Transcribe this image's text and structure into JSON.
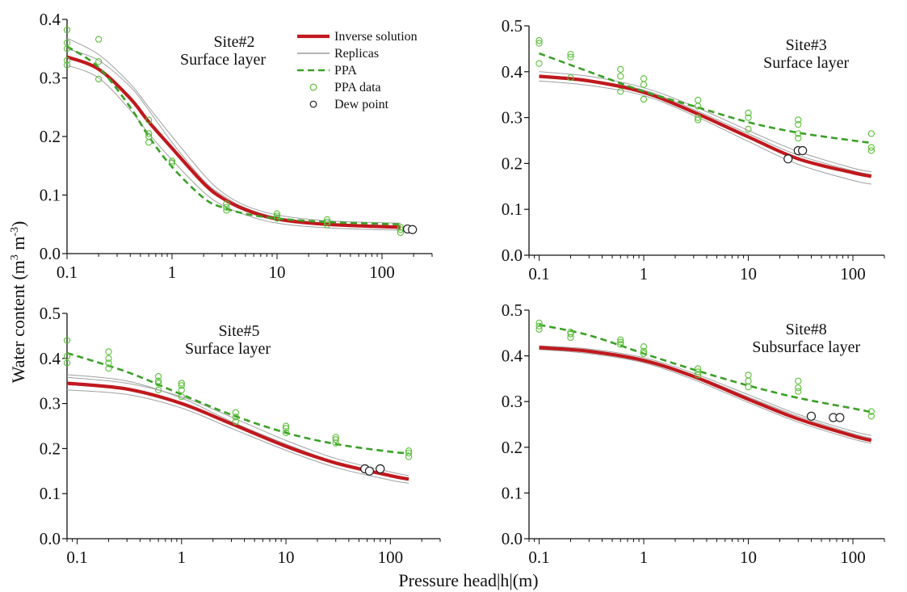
{
  "figure": {
    "ylabel": "Water content (m",
    "ylabel_sup1": "3",
    "ylabel_mid": " m",
    "ylabel_sup2": "-3",
    "ylabel_end": ")",
    "xlabel": "Pressure head|h|(m)"
  },
  "legend": {
    "position": "top-right of first panel",
    "items": [
      {
        "label": "Inverse solution",
        "style": "thick-line",
        "color": "#c0191e"
      },
      {
        "label": "Replicas",
        "style": "thin-line",
        "color": "#9a9a9a"
      },
      {
        "label": "PPA",
        "style": "dashed-line",
        "color": "#3aa027"
      },
      {
        "label": "PPA data",
        "style": "open-circle",
        "color": "#5bbf3a"
      },
      {
        "label": "Dew point",
        "style": "open-circle",
        "color": "#222222"
      }
    ]
  },
  "colors": {
    "inverse": "#c0191e",
    "replica": "#a0a0a0",
    "ppa": "#3aa027",
    "ppa_data": "#5bbf3a",
    "dew": "#222222"
  },
  "chart_data": [
    {
      "type": "line",
      "title": "Site#2",
      "subtitle": "Surface layer",
      "x_scale": "log",
      "xlim": [
        0.1,
        300
      ],
      "ylim": [
        0,
        0.4
      ],
      "x_ticks": [
        {
          "v": 0.1,
          "label": "0.1"
        },
        {
          "v": 1,
          "label": "1"
        },
        {
          "v": 10,
          "label": "10"
        },
        {
          "v": 100,
          "label": "100"
        }
      ],
      "y_ticks": [
        {
          "v": 0,
          "label": "0.0"
        },
        {
          "v": 0.1,
          "label": "0.1"
        },
        {
          "v": 0.2,
          "label": "0.2"
        },
        {
          "v": 0.3,
          "label": "0.3"
        },
        {
          "v": 0.4,
          "label": "0.4"
        }
      ],
      "inverse": {
        "x": [
          0.1,
          0.2,
          0.4,
          0.6,
          1,
          2,
          3,
          5,
          10,
          30,
          150
        ],
        "y": [
          0.336,
          0.315,
          0.265,
          0.225,
          0.18,
          0.12,
          0.095,
          0.075,
          0.059,
          0.05,
          0.045
        ]
      },
      "replicas": [
        {
          "x": [
            0.1,
            0.2,
            0.4,
            0.6,
            1,
            2,
            3,
            5,
            10,
            30,
            150
          ],
          "y": [
            0.368,
            0.34,
            0.29,
            0.25,
            0.2,
            0.135,
            0.105,
            0.082,
            0.066,
            0.056,
            0.052
          ]
        },
        {
          "x": [
            0.1,
            0.2,
            0.4,
            0.6,
            1,
            2,
            3,
            5,
            10,
            30,
            150
          ],
          "y": [
            0.322,
            0.3,
            0.245,
            0.205,
            0.16,
            0.105,
            0.083,
            0.066,
            0.052,
            0.044,
            0.04
          ]
        },
        {
          "x": [
            0.1,
            0.2,
            0.4,
            0.6,
            1,
            2,
            3,
            5,
            10,
            30,
            150
          ],
          "y": [
            0.35,
            0.33,
            0.285,
            0.245,
            0.19,
            0.125,
            0.1,
            0.078,
            0.062,
            0.052,
            0.047
          ]
        }
      ],
      "ppa": {
        "x": [
          0.1,
          0.2,
          0.4,
          0.6,
          1,
          2,
          3,
          5,
          10,
          30,
          150
        ],
        "y": [
          0.354,
          0.318,
          0.25,
          0.2,
          0.148,
          0.095,
          0.079,
          0.068,
          0.06,
          0.054,
          0.05
        ]
      },
      "ppa_data": {
        "x": [
          0.1,
          0.1,
          0.1,
          0.1,
          0.1,
          0.2,
          0.2,
          0.2,
          0.6,
          0.6,
          0.6,
          0.6,
          1,
          1,
          3.3,
          3.3,
          3.3,
          10,
          10,
          10,
          30,
          30,
          30,
          150,
          150,
          150
        ],
        "y": [
          0.382,
          0.36,
          0.35,
          0.33,
          0.322,
          0.366,
          0.328,
          0.298,
          0.228,
          0.205,
          0.2,
          0.19,
          0.158,
          0.155,
          0.085,
          0.079,
          0.074,
          0.068,
          0.064,
          0.06,
          0.058,
          0.054,
          0.049,
          0.045,
          0.041,
          0.036
        ]
      },
      "dew": {
        "x": [
          175,
          195
        ],
        "y": [
          0.042,
          0.041
        ]
      },
      "title_pos": "upper-center",
      "legend": true
    },
    {
      "type": "line",
      "title": "Site#3",
      "subtitle": "Surface layer",
      "x_scale": "log",
      "xlim": [
        0.08,
        200
      ],
      "ylim": [
        0,
        0.5
      ],
      "x_ticks": [
        {
          "v": 0.1,
          "label": "0.1"
        },
        {
          "v": 1,
          "label": "1"
        },
        {
          "v": 10,
          "label": "10"
        },
        {
          "v": 100,
          "label": "100"
        }
      ],
      "y_ticks": [
        {
          "v": 0,
          "label": "0.0"
        },
        {
          "v": 0.1,
          "label": "0.1"
        },
        {
          "v": 0.2,
          "label": "0.2"
        },
        {
          "v": 0.3,
          "label": "0.3"
        },
        {
          "v": 0.4,
          "label": "0.4"
        },
        {
          "v": 0.5,
          "label": "0.5"
        }
      ],
      "inverse": {
        "x": [
          0.1,
          0.3,
          1,
          3,
          10,
          30,
          100,
          150
        ],
        "y": [
          0.39,
          0.38,
          0.355,
          0.312,
          0.258,
          0.21,
          0.18,
          0.172
        ]
      },
      "replicas": [
        {
          "x": [
            0.1,
            0.3,
            1,
            3,
            10,
            30,
            100,
            150
          ],
          "y": [
            0.4,
            0.39,
            0.365,
            0.325,
            0.272,
            0.226,
            0.19,
            0.182
          ]
        },
        {
          "x": [
            0.1,
            0.3,
            1,
            3,
            10,
            30,
            100,
            150
          ],
          "y": [
            0.38,
            0.37,
            0.348,
            0.305,
            0.248,
            0.198,
            0.163,
            0.155
          ]
        },
        {
          "x": [
            0.1,
            0.3,
            1,
            3,
            10,
            30,
            100,
            150
          ],
          "y": [
            0.392,
            0.382,
            0.36,
            0.318,
            0.265,
            0.218,
            0.184,
            0.176
          ]
        }
      ],
      "ppa": {
        "x": [
          0.1,
          0.3,
          1,
          3,
          10,
          30,
          100,
          150
        ],
        "y": [
          0.44,
          0.4,
          0.357,
          0.325,
          0.29,
          0.267,
          0.25,
          0.245
        ]
      },
      "ppa_data": {
        "x": [
          0.1,
          0.1,
          0.1,
          0.2,
          0.2,
          0.2,
          0.6,
          0.6,
          0.6,
          1,
          1,
          1,
          3.3,
          3.3,
          3.3,
          3.3,
          10,
          10,
          10,
          30,
          30,
          30,
          30,
          150,
          150,
          150
        ],
        "y": [
          0.468,
          0.462,
          0.418,
          0.438,
          0.432,
          0.387,
          0.405,
          0.39,
          0.357,
          0.385,
          0.372,
          0.34,
          0.338,
          0.325,
          0.3,
          0.295,
          0.31,
          0.3,
          0.275,
          0.295,
          0.285,
          0.265,
          0.255,
          0.265,
          0.235,
          0.228
        ]
      },
      "dew": {
        "x": [
          24,
          30,
          33
        ],
        "y": [
          0.21,
          0.228,
          0.228
        ]
      },
      "title_pos": "upper-right",
      "legend": false
    },
    {
      "type": "line",
      "title": "Site#5",
      "subtitle": "Surface layer",
      "x_scale": "log",
      "xlim": [
        0.08,
        300
      ],
      "ylim": [
        0,
        0.5
      ],
      "x_ticks": [
        {
          "v": 0.1,
          "label": "0.1"
        },
        {
          "v": 1,
          "label": "1"
        },
        {
          "v": 10,
          "label": "10"
        },
        {
          "v": 100,
          "label": "100"
        }
      ],
      "y_ticks": [
        {
          "v": 0,
          "label": "0.0"
        },
        {
          "v": 0.1,
          "label": "0.1"
        },
        {
          "v": 0.2,
          "label": "0.2"
        },
        {
          "v": 0.3,
          "label": "0.3"
        },
        {
          "v": 0.4,
          "label": "0.4"
        },
        {
          "v": 0.5,
          "label": "0.5"
        }
      ],
      "inverse": {
        "x": [
          0.08,
          0.3,
          1,
          3,
          10,
          30,
          100,
          150
        ],
        "y": [
          0.345,
          0.332,
          0.3,
          0.255,
          0.205,
          0.168,
          0.14,
          0.132
        ]
      },
      "replicas": [
        {
          "x": [
            0.08,
            0.3,
            1,
            3,
            10,
            30,
            100,
            150
          ],
          "y": [
            0.358,
            0.345,
            0.315,
            0.27,
            0.218,
            0.178,
            0.148,
            0.14
          ]
        },
        {
          "x": [
            0.08,
            0.3,
            1,
            3,
            10,
            30,
            100,
            150
          ],
          "y": [
            0.33,
            0.32,
            0.29,
            0.245,
            0.196,
            0.158,
            0.13,
            0.123
          ]
        },
        {
          "x": [
            0.08,
            0.3,
            1,
            3,
            10,
            30,
            100,
            150
          ],
          "y": [
            0.364,
            0.35,
            0.312,
            0.26,
            0.21,
            0.17,
            0.142,
            0.135
          ]
        }
      ],
      "ppa": {
        "x": [
          0.08,
          0.3,
          1,
          3,
          10,
          30,
          100,
          150
        ],
        "y": [
          0.412,
          0.37,
          0.32,
          0.275,
          0.235,
          0.21,
          0.193,
          0.19
        ]
      },
      "ppa_data": {
        "x": [
          0.08,
          0.08,
          0.08,
          0.2,
          0.2,
          0.2,
          0.2,
          0.6,
          0.6,
          0.6,
          0.6,
          1,
          1,
          1,
          1,
          3.3,
          3.3,
          3.3,
          10,
          10,
          10,
          30,
          30,
          30,
          150,
          150,
          150
        ],
        "y": [
          0.44,
          0.405,
          0.39,
          0.415,
          0.4,
          0.39,
          0.378,
          0.36,
          0.35,
          0.345,
          0.33,
          0.345,
          0.34,
          0.33,
          0.315,
          0.28,
          0.27,
          0.26,
          0.25,
          0.245,
          0.235,
          0.225,
          0.22,
          0.212,
          0.195,
          0.19,
          0.182
        ]
      },
      "dew": {
        "x": [
          57,
          63,
          80
        ],
        "y": [
          0.155,
          0.15,
          0.155
        ]
      },
      "title_pos": "upper-center",
      "legend": false
    },
    {
      "type": "line",
      "title": "Site#8",
      "subtitle": "Subsurface layer",
      "x_scale": "log",
      "xlim": [
        0.08,
        200
      ],
      "ylim": [
        0,
        0.5
      ],
      "x_ticks": [
        {
          "v": 0.1,
          "label": "0.1"
        },
        {
          "v": 1,
          "label": "1"
        },
        {
          "v": 10,
          "label": "10"
        },
        {
          "v": 100,
          "label": "100"
        }
      ],
      "y_ticks": [
        {
          "v": 0,
          "label": "0.0"
        },
        {
          "v": 0.1,
          "label": "0.1"
        },
        {
          "v": 0.2,
          "label": "0.2"
        },
        {
          "v": 0.3,
          "label": "0.3"
        },
        {
          "v": 0.4,
          "label": "0.4"
        },
        {
          "v": 0.5,
          "label": "0.5"
        }
      ],
      "inverse": {
        "x": [
          0.1,
          0.3,
          1,
          3,
          10,
          30,
          100,
          150
        ],
        "y": [
          0.418,
          0.41,
          0.39,
          0.355,
          0.305,
          0.262,
          0.225,
          0.215
        ]
      },
      "replicas": [
        {
          "x": [
            0.1,
            0.3,
            1,
            3,
            10,
            30,
            100,
            150
          ],
          "y": [
            0.422,
            0.415,
            0.396,
            0.362,
            0.315,
            0.272,
            0.235,
            0.226
          ]
        },
        {
          "x": [
            0.1,
            0.3,
            1,
            3,
            10,
            30,
            100,
            150
          ],
          "y": [
            0.414,
            0.405,
            0.385,
            0.348,
            0.298,
            0.255,
            0.218,
            0.209
          ]
        },
        {
          "x": [
            0.1,
            0.3,
            1,
            3,
            10,
            30,
            100,
            150
          ],
          "y": [
            0.42,
            0.412,
            0.393,
            0.358,
            0.31,
            0.268,
            0.23,
            0.22
          ]
        }
      ],
      "ppa": {
        "x": [
          0.1,
          0.3,
          1,
          3,
          10,
          30,
          100,
          150
        ],
        "y": [
          0.468,
          0.445,
          0.405,
          0.37,
          0.335,
          0.308,
          0.285,
          0.277
        ]
      },
      "ppa_data": {
        "x": [
          0.1,
          0.1,
          0.1,
          0.2,
          0.2,
          0.2,
          0.6,
          0.6,
          0.6,
          1,
          1,
          1,
          3.3,
          3.3,
          3.3,
          10,
          10,
          10,
          30,
          30,
          30,
          150,
          150
        ],
        "y": [
          0.472,
          0.465,
          0.458,
          0.452,
          0.448,
          0.44,
          0.435,
          0.43,
          0.425,
          0.42,
          0.41,
          0.405,
          0.372,
          0.365,
          0.358,
          0.358,
          0.345,
          0.332,
          0.345,
          0.33,
          0.322,
          0.278,
          0.268
        ]
      },
      "dew": {
        "x": [
          40,
          65,
          75
        ],
        "y": [
          0.268,
          0.265,
          0.265
        ]
      },
      "title_pos": "upper-right",
      "legend": false
    }
  ]
}
